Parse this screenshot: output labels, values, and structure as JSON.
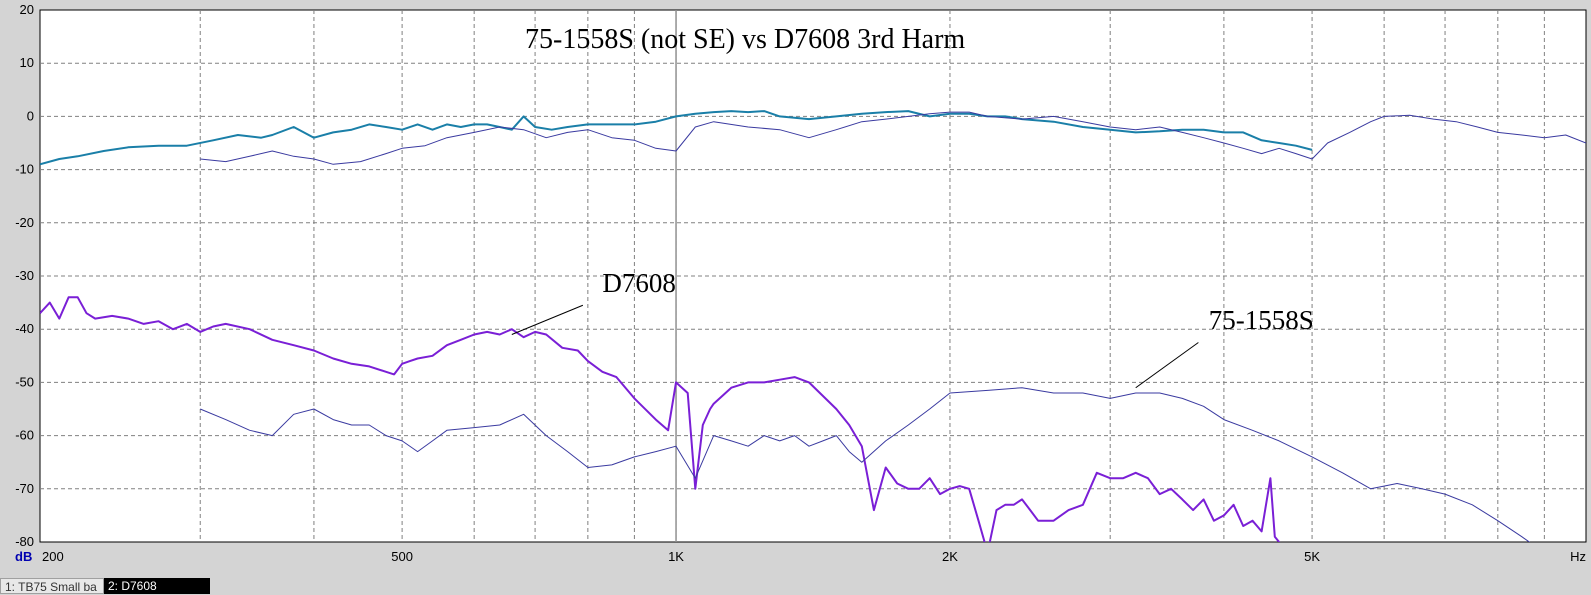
{
  "window": {
    "tabs": [
      {
        "label": "1: TB75 Small ba",
        "active": false
      },
      {
        "label": "2: D7608",
        "active": true
      }
    ]
  },
  "chart_data": {
    "type": "line",
    "title": "75-1558S (not SE) vs D7608 3rd Harm",
    "x_scale": "log",
    "x_unit_label": "Hz",
    "y_unit_label": "dB",
    "xlim": [
      200,
      10000
    ],
    "ylim": [
      -80,
      20
    ],
    "x_ticks": [
      {
        "value": 200,
        "label": "200"
      },
      {
        "value": 500,
        "label": "500"
      },
      {
        "value": 1000,
        "label": "1K"
      },
      {
        "value": 2000,
        "label": "2K"
      },
      {
        "value": 5000,
        "label": "5K"
      },
      {
        "value": 10000,
        "label": "Hz"
      }
    ],
    "y_ticks": [
      20,
      10,
      0,
      -10,
      -20,
      -30,
      -40,
      -50,
      -60,
      -70,
      -80
    ],
    "grid": true,
    "colors": {
      "plot_bg": "#ffffff",
      "grid": "#808080",
      "d7608_fundamental": "#1a7fa8",
      "d7608_3rd": "#7a1fd6",
      "tb75": "#3a3aa0",
      "cursor": "#909090"
    },
    "cursor_x": 1000,
    "annotations": [
      {
        "text": "D7608",
        "x": 830,
        "y": -33,
        "arrow_from": [
          790,
          -35.5
        ],
        "arrow_to": [
          660,
          -41
        ]
      },
      {
        "text": "75-1558S",
        "x": 3850,
        "y": -40,
        "arrow_from": [
          3750,
          -42.5
        ],
        "arrow_to": [
          3200,
          -51
        ]
      }
    ],
    "series": [
      {
        "key": "d7608_fundamental",
        "color_key": "d7608_fundamental",
        "width": 2,
        "x": [
          200,
          210,
          220,
          235,
          250,
          270,
          290,
          310,
          330,
          350,
          360,
          380,
          400,
          420,
          440,
          460,
          480,
          500,
          520,
          540,
          560,
          580,
          600,
          620,
          640,
          660,
          680,
          700,
          730,
          760,
          800,
          850,
          900,
          950,
          1000,
          1050,
          1100,
          1150,
          1200,
          1250,
          1300,
          1400,
          1500,
          1600,
          1700,
          1800,
          1900,
          2000,
          2100,
          2200,
          2300,
          2400,
          2600,
          2800,
          3000,
          3200,
          3400,
          3600,
          3800,
          4000,
          4200,
          4400,
          4600,
          4800,
          5000
        ],
        "y": [
          -9,
          -8,
          -7.5,
          -6.5,
          -5.8,
          -5.5,
          -5.5,
          -4.5,
          -3.5,
          -4,
          -3.5,
          -2,
          -4,
          -3,
          -2.5,
          -1.5,
          -2,
          -2.5,
          -1.5,
          -2.5,
          -1.5,
          -2,
          -1.5,
          -1.5,
          -2,
          -2.5,
          0,
          -2,
          -2.5,
          -2,
          -1.5,
          -1.5,
          -1.5,
          -1,
          0,
          0.5,
          0.8,
          1,
          0.8,
          1,
          0,
          -0.5,
          0,
          0.5,
          0.8,
          1,
          0,
          0.5,
          0.5,
          0,
          0,
          -0.5,
          -1,
          -2,
          -2.5,
          -3,
          -2.8,
          -2.5,
          -2.5,
          -3,
          -3,
          -4.5,
          -5,
          -5.5,
          -6.3
        ]
      },
      {
        "key": "tb75_fundamental",
        "color_key": "tb75",
        "width": 1,
        "x": [
          300,
          320,
          340,
          360,
          380,
          400,
          420,
          450,
          480,
          500,
          530,
          560,
          600,
          640,
          680,
          720,
          760,
          800,
          850,
          900,
          950,
          1000,
          1050,
          1100,
          1200,
          1300,
          1400,
          1500,
          1600,
          1700,
          1800,
          1900,
          2000,
          2100,
          2200,
          2400,
          2600,
          2800,
          3000,
          3200,
          3400,
          3600,
          3800,
          4000,
          4200,
          4400,
          4600,
          4800,
          5000,
          5200,
          5500,
          5800,
          6000,
          6400,
          6800,
          7200,
          7600,
          8000,
          8500,
          9000,
          9500,
          10000
        ],
        "y": [
          -8,
          -8.5,
          -7.5,
          -6.5,
          -7.5,
          -8,
          -9,
          -8.5,
          -7,
          -6,
          -5.5,
          -4,
          -3,
          -2,
          -2.5,
          -4,
          -3,
          -2.5,
          -4,
          -4.5,
          -6,
          -6.5,
          -2,
          -1,
          -2,
          -2.5,
          -4,
          -2.5,
          -1,
          -0.5,
          0,
          0.5,
          0.8,
          0.8,
          0,
          -0.5,
          0,
          -1,
          -2,
          -2.5,
          -2,
          -3,
          -4,
          -5,
          -6,
          -7,
          -6,
          -7,
          -8,
          -5,
          -3,
          -1,
          0,
          0.2,
          -0.5,
          -1,
          -2,
          -3,
          -3.5,
          -4,
          -3.5,
          -5
        ]
      },
      {
        "key": "d7608_3rd_harmonic",
        "color_key": "d7608_3rd",
        "width": 2,
        "x": [
          200,
          205,
          210,
          215,
          220,
          225,
          230,
          240,
          250,
          260,
          270,
          280,
          290,
          300,
          310,
          320,
          340,
          360,
          380,
          400,
          420,
          440,
          460,
          480,
          490,
          500,
          510,
          520,
          540,
          560,
          580,
          600,
          620,
          640,
          660,
          680,
          700,
          720,
          750,
          780,
          800,
          830,
          860,
          900,
          950,
          980,
          1000,
          1030,
          1050,
          1070,
          1090,
          1100,
          1150,
          1200,
          1250,
          1300,
          1350,
          1400,
          1500,
          1550,
          1600,
          1650,
          1700,
          1750,
          1800,
          1850,
          1900,
          1950,
          2000,
          2050,
          2100,
          2150,
          2200,
          2250,
          2300,
          2350,
          2400,
          2450,
          2500,
          2600,
          2700,
          2800,
          2900,
          3000,
          3100,
          3200,
          3300,
          3400,
          3500,
          3600,
          3700,
          3800,
          3900,
          4000,
          4100,
          4200,
          4300,
          4400,
          4500,
          4550,
          4600,
          4650,
          4700,
          4750
        ],
        "y": [
          -37,
          -35,
          -38,
          -34,
          -34,
          -37,
          -38,
          -37.5,
          -38,
          -39,
          -38.5,
          -40,
          -39,
          -40.5,
          -39.5,
          -39,
          -40,
          -42,
          -43,
          -44,
          -45.5,
          -46.5,
          -47,
          -48,
          -48.5,
          -46.5,
          -46,
          -45.5,
          -45,
          -43,
          -42,
          -41,
          -40.5,
          -41,
          -40,
          -41.5,
          -40.5,
          -41,
          -43.5,
          -44,
          -46,
          -48,
          -49,
          -53,
          -57,
          -59,
          -50,
          -52,
          -70,
          -58,
          -55,
          -54,
          -51,
          -50,
          -50,
          -49.5,
          -49,
          -50,
          -55,
          -58,
          -62,
          -74,
          -66,
          -69,
          -70,
          -70,
          -68,
          -71,
          -70,
          -69.5,
          -70,
          -76,
          -82,
          -74,
          -73,
          -73,
          -72,
          -74,
          -76,
          -76,
          -74,
          -73,
          -67,
          -68,
          -68,
          -67,
          -68,
          -71,
          -70,
          -72,
          -74,
          -72,
          -76,
          -75,
          -73,
          -77,
          -76,
          -78,
          -68,
          -79,
          -80,
          -82,
          -84,
          -86
        ]
      },
      {
        "key": "tb75_3rd_harmonic",
        "color_key": "tb75",
        "width": 1,
        "x": [
          300,
          320,
          340,
          360,
          380,
          400,
          420,
          440,
          460,
          480,
          500,
          520,
          540,
          560,
          600,
          640,
          680,
          720,
          760,
          800,
          850,
          900,
          950,
          1000,
          1050,
          1100,
          1150,
          1200,
          1250,
          1300,
          1350,
          1400,
          1450,
          1500,
          1550,
          1600,
          1700,
          1800,
          1900,
          2000,
          2200,
          2400,
          2600,
          2800,
          3000,
          3200,
          3400,
          3600,
          3800,
          4000,
          4300,
          4600,
          5000,
          5400,
          5800,
          6200,
          6600,
          7000,
          7500,
          8000,
          8500,
          9000
        ],
        "y": [
          -55,
          -57,
          -59,
          -60,
          -56,
          -55,
          -57,
          -58,
          -58,
          -60,
          -61,
          -63,
          -61,
          -59,
          -58.5,
          -58,
          -56,
          -60,
          -63,
          -66,
          -65.5,
          -64,
          -63,
          -62,
          -68,
          -60,
          -61,
          -62,
          -60,
          -61,
          -60,
          -62,
          -61,
          -60,
          -63,
          -65,
          -61,
          -58,
          -55,
          -52,
          -51.5,
          -51,
          -52,
          -52,
          -53,
          -52,
          -52,
          -53,
          -54.5,
          -57,
          -59,
          -61,
          -64,
          -67,
          -70,
          -69,
          -70,
          -71,
          -73,
          -76,
          -79,
          -82
        ]
      }
    ]
  }
}
